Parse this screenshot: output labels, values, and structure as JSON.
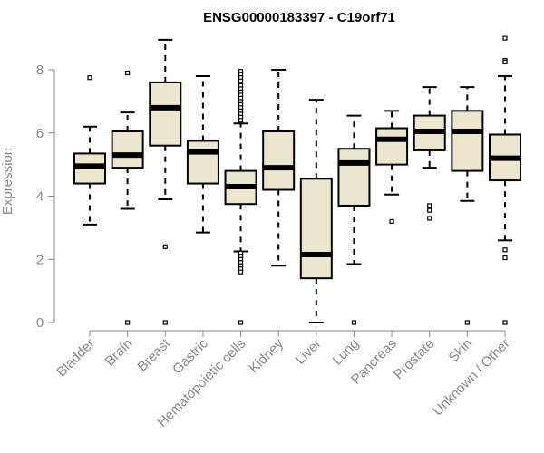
{
  "chart_data": {
    "type": "boxplot",
    "title": "ENSG00000183397 - C19orf71",
    "ylabel": "Expression",
    "xlabel": "",
    "ylim": [
      0,
      9.1
    ],
    "yticks": [
      0,
      2,
      4,
      6,
      8
    ],
    "grid": false,
    "box_fill": "#ede6cf",
    "categories": [
      "Bladder",
      "Brain",
      "Breast",
      "Gastric",
      "Hematopoietic cells",
      "Kidney",
      "Liver",
      "Lung",
      "Pancreas",
      "Prostate",
      "Skin",
      "Unknown / Other"
    ],
    "boxes": [
      {
        "q1": 4.4,
        "median": 4.95,
        "q3": 5.35,
        "whisker_low": 3.1,
        "whisker_high": 6.2,
        "outliers": [
          7.75
        ]
      },
      {
        "q1": 4.9,
        "median": 5.3,
        "q3": 6.05,
        "whisker_low": 3.6,
        "whisker_high": 6.65,
        "outliers": [
          7.9,
          0.0
        ]
      },
      {
        "q1": 5.6,
        "median": 6.8,
        "q3": 7.6,
        "whisker_low": 3.9,
        "whisker_high": 8.95,
        "outliers": [
          2.4,
          0.0
        ]
      },
      {
        "q1": 4.4,
        "median": 5.4,
        "q3": 5.75,
        "whisker_low": 2.85,
        "whisker_high": 7.8,
        "outliers": []
      },
      {
        "q1": 3.75,
        "median": 4.3,
        "q3": 4.8,
        "whisker_low": 2.25,
        "whisker_high": 6.3,
        "outliers": [
          7.95,
          7.85,
          7.75,
          7.65,
          7.5,
          7.4,
          7.3,
          7.2,
          7.1,
          7.0,
          6.9,
          6.8,
          6.7,
          6.6,
          6.5,
          6.4,
          2.2,
          2.1,
          2.0,
          1.9,
          1.8,
          1.7,
          1.6,
          0.0
        ]
      },
      {
        "q1": 4.2,
        "median": 4.9,
        "q3": 6.05,
        "whisker_low": 1.8,
        "whisker_high": 8.0,
        "outliers": []
      },
      {
        "q1": 1.4,
        "median": 2.15,
        "q3": 4.55,
        "whisker_low": 0.0,
        "whisker_high": 7.05,
        "outliers": []
      },
      {
        "q1": 3.7,
        "median": 5.05,
        "q3": 5.5,
        "whisker_low": 1.85,
        "whisker_high": 6.55,
        "outliers": [
          0.0
        ]
      },
      {
        "q1": 5.0,
        "median": 5.8,
        "q3": 6.15,
        "whisker_low": 4.05,
        "whisker_high": 6.7,
        "outliers": [
          3.2
        ]
      },
      {
        "q1": 5.45,
        "median": 6.05,
        "q3": 6.55,
        "whisker_low": 4.9,
        "whisker_high": 7.45,
        "outliers": [
          3.7,
          3.55,
          3.3
        ]
      },
      {
        "q1": 4.8,
        "median": 6.05,
        "q3": 6.7,
        "whisker_low": 3.85,
        "whisker_high": 7.45,
        "outliers": [
          0.0
        ]
      },
      {
        "q1": 4.5,
        "median": 5.2,
        "q3": 5.95,
        "whisker_low": 2.6,
        "whisker_high": 7.8,
        "outliers": [
          9.0,
          8.3,
          8.25,
          2.3,
          2.05,
          0.0
        ]
      }
    ]
  }
}
